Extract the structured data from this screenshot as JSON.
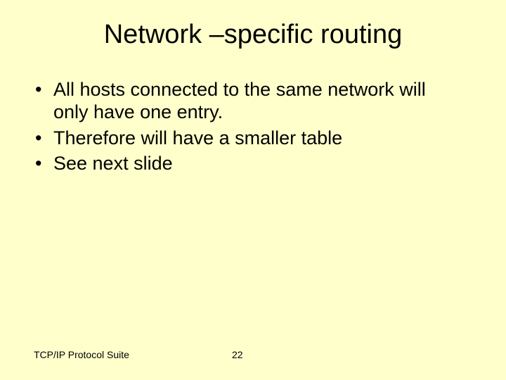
{
  "title": "Network –specific routing",
  "bullets": [
    "All hosts connected to the same network will only have one entry.",
    "Therefore will have a smaller table",
    "See next slide"
  ],
  "footer": {
    "left": "TCP/IP Protocol Suite",
    "page": "22"
  },
  "colors": {
    "background": "#ffffcc",
    "text": "#000000"
  },
  "fonts": {
    "title_size": 38,
    "body_size": 27,
    "footer_size": 14
  }
}
